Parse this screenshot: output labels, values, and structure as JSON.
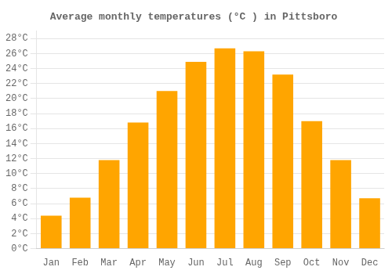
{
  "chart_data": {
    "type": "bar",
    "title": "Average monthly temperatures (°C ) in Pittsboro",
    "categories": [
      "Jan",
      "Feb",
      "Mar",
      "Apr",
      "May",
      "Jun",
      "Jul",
      "Aug",
      "Sep",
      "Oct",
      "Nov",
      "Dec"
    ],
    "values": [
      4.4,
      6.8,
      11.8,
      16.8,
      21.0,
      24.9,
      26.7,
      26.3,
      23.2,
      17.0,
      11.8,
      6.7
    ],
    "color": "#FFA500",
    "ylim": [
      0,
      29
    ],
    "yticks": [
      {
        "value": 0,
        "label": "0°C"
      },
      {
        "value": 2,
        "label": "2°C"
      },
      {
        "value": 4,
        "label": "4°C"
      },
      {
        "value": 6,
        "label": "6°C"
      },
      {
        "value": 8,
        "label": "8°C"
      },
      {
        "value": 10,
        "label": "10°C"
      },
      {
        "value": 12,
        "label": "12°C"
      },
      {
        "value": 14,
        "label": "14°C"
      },
      {
        "value": 16,
        "label": "16°C"
      },
      {
        "value": 18,
        "label": "18°C"
      },
      {
        "value": 20,
        "label": "20°C"
      },
      {
        "value": 22,
        "label": "22°C"
      },
      {
        "value": 24,
        "label": "24°C"
      },
      {
        "value": 26,
        "label": "26°C"
      },
      {
        "value": 28,
        "label": "28°C"
      }
    ],
    "grid": true
  }
}
